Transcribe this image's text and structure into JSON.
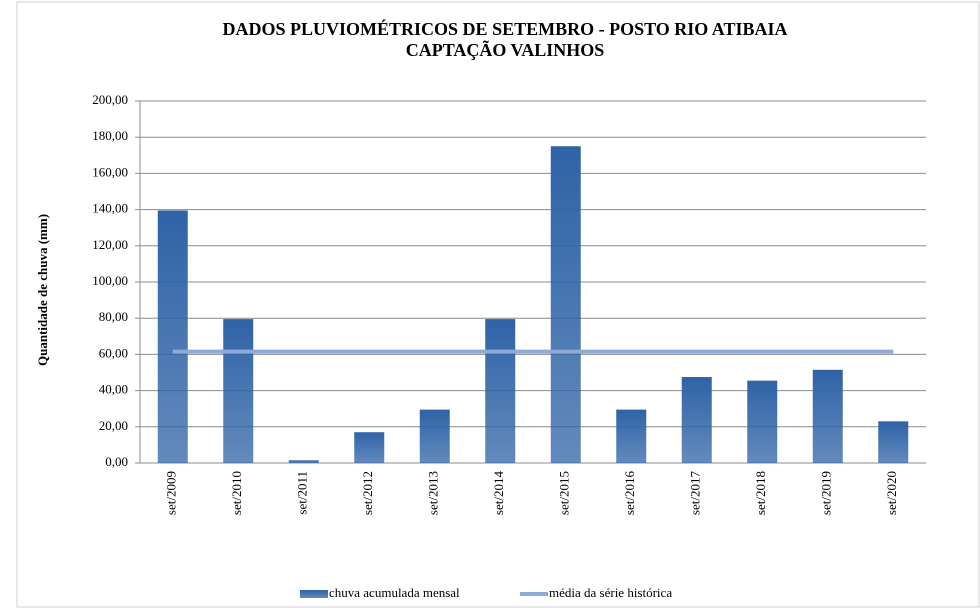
{
  "chart_data": {
    "type": "bar",
    "title": "DADOS PLUVIOMÉTRICOS DE SETEMBRO - POSTO RIO ATIBAIA",
    "subtitle": "CAPTAÇÃO VALINHOS",
    "y_label": "Quantidade de chuva (mm)",
    "categories": [
      "set/2009",
      "set/2010",
      "set/2011",
      "set/2012",
      "set/2013",
      "set/2014",
      "set/2015",
      "set/2016",
      "set/2017",
      "set/2018",
      "set/2019",
      "set/2020"
    ],
    "series": [
      {
        "name": "chuva acumulada mensal",
        "type": "bar",
        "color": "#2f63a6",
        "values": [
          139.5,
          79.5,
          1.5,
          17,
          29.5,
          79.5,
          175,
          29.5,
          47.5,
          45.5,
          51.5,
          23
        ]
      },
      {
        "name": "média da série histórica",
        "type": "line",
        "color": "#8eaad6",
        "values": [
          61.5,
          61.5,
          61.5,
          61.5,
          61.5,
          61.5,
          61.5,
          61.5,
          61.5,
          61.5,
          61.5,
          61.5
        ]
      }
    ],
    "ylim": [
      0,
      200
    ],
    "yticks": [
      {
        "value": 0,
        "label": "0,00"
      },
      {
        "value": 20,
        "label": "20,00"
      },
      {
        "value": 40,
        "label": "40,00"
      },
      {
        "value": 60,
        "label": "60,00"
      },
      {
        "value": 80,
        "label": "80,00"
      },
      {
        "value": 100,
        "label": "100,00"
      },
      {
        "value": 120,
        "label": "120,00"
      },
      {
        "value": 140,
        "label": "140,00"
      },
      {
        "value": 160,
        "label": "160,00"
      },
      {
        "value": 180,
        "label": "180,00"
      },
      {
        "value": 200,
        "label": "200,00"
      }
    ],
    "grid": true,
    "legend": "bottom"
  }
}
